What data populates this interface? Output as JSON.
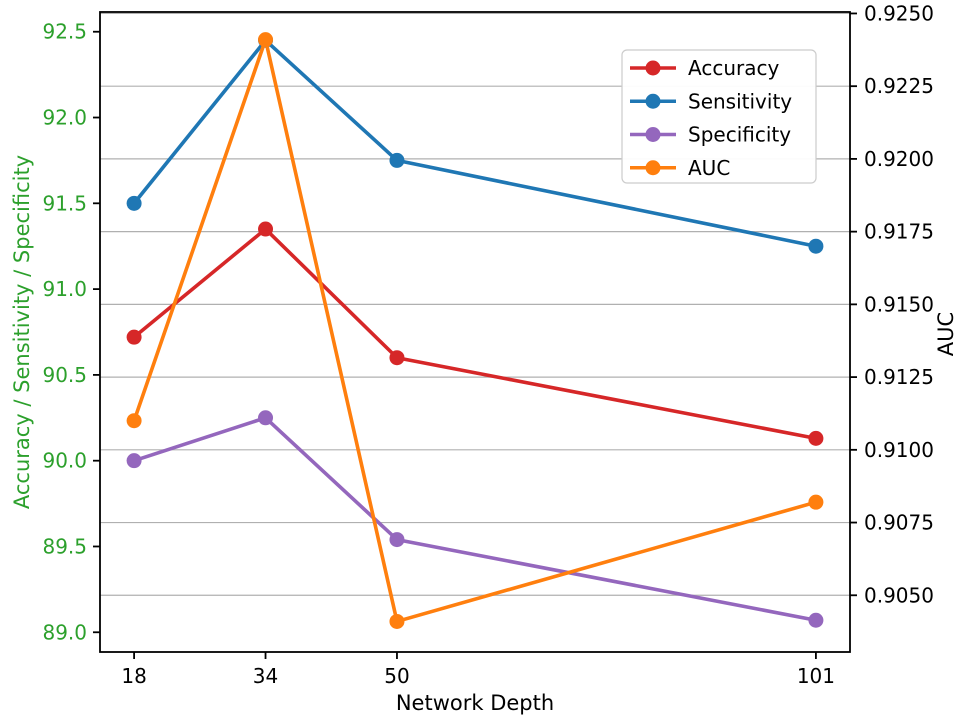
{
  "chart_data": {
    "type": "line",
    "title": "",
    "x": [
      18,
      34,
      50,
      101
    ],
    "x_axis": {
      "label": "Network Depth",
      "ticks": [
        "18",
        "34",
        "50",
        "101"
      ],
      "tick_values": [
        18,
        34,
        50,
        101
      ],
      "xlim": [
        13.85,
        105.15
      ]
    },
    "left_axis": {
      "label": "Accuracy / Sensitivity / Specificity",
      "color": "#2ca02c",
      "ticks": [
        "89.0",
        "89.5",
        "90.0",
        "90.5",
        "91.0",
        "91.5",
        "92.0",
        "92.5"
      ],
      "tick_values": [
        89.0,
        89.5,
        90.0,
        90.5,
        91.0,
        91.5,
        92.0,
        92.5
      ],
      "ylim": [
        88.885,
        92.615
      ]
    },
    "right_axis": {
      "label": "AUC",
      "color": "#000000",
      "ticks": [
        "0.9050",
        "0.9075",
        "0.9100",
        "0.9125",
        "0.9150",
        "0.9175",
        "0.9200",
        "0.9225",
        "0.9250"
      ],
      "tick_values": [
        0.905,
        0.9075,
        0.91,
        0.9125,
        0.915,
        0.9175,
        0.92,
        0.9225,
        0.925
      ],
      "ylim": [
        0.90305,
        0.92505
      ]
    },
    "grid": {
      "on": true,
      "axis": "right",
      "color": "#b0b0b0"
    },
    "legend": {
      "position": "upper-right",
      "entries": [
        "Accuracy",
        "Sensitivity",
        "Specificity",
        "AUC"
      ]
    },
    "series": [
      {
        "name": "Accuracy",
        "color": "#d62728",
        "axis": "left",
        "values": [
          90.72,
          91.35,
          90.6,
          90.13
        ]
      },
      {
        "name": "Sensitivity",
        "color": "#1f77b4",
        "axis": "left",
        "values": [
          91.5,
          92.45,
          91.75,
          91.25
        ]
      },
      {
        "name": "Specificity",
        "color": "#9467bd",
        "axis": "left",
        "values": [
          90.0,
          90.25,
          89.54,
          89.07
        ]
      },
      {
        "name": "AUC",
        "color": "#ff7f0e",
        "axis": "right",
        "values": [
          0.911,
          0.9241,
          0.9041,
          0.9082
        ]
      }
    ]
  }
}
